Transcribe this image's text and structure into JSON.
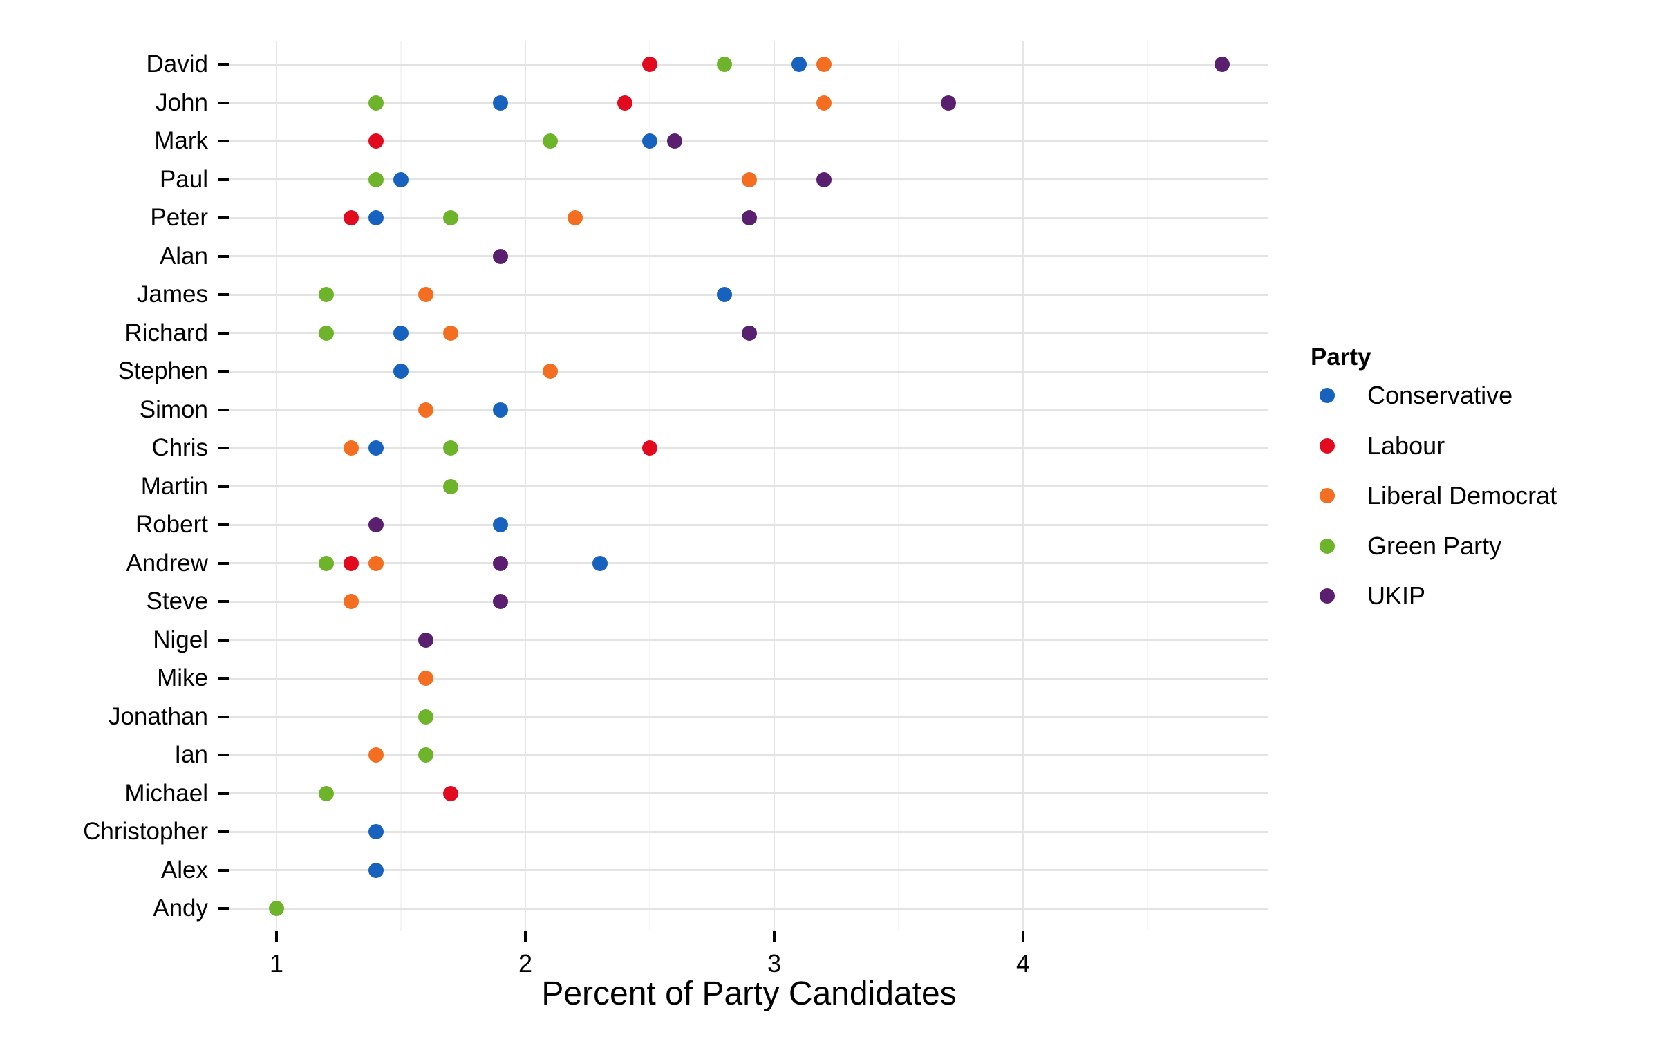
{
  "chart_data": {
    "type": "scatter",
    "subtype": "dot-plot",
    "title": "",
    "xlabel": "Percent of Party Candidates",
    "ylabel": "",
    "xlim": [
      0.8,
      4.98
    ],
    "x_ticks": [
      1,
      2,
      3,
      4
    ],
    "x_tick_labels": [
      "1",
      "2",
      "3",
      "4"
    ],
    "grid": true,
    "legend": {
      "title": "Party",
      "position": "right"
    },
    "categories": [
      "David",
      "John",
      "Mark",
      "Paul",
      "Peter",
      "Alan",
      "James",
      "Richard",
      "Stephen",
      "Simon",
      "Chris",
      "Martin",
      "Robert",
      "Andrew",
      "Steve",
      "Nigel",
      "Mike",
      "Jonathan",
      "Ian",
      "Michael",
      "Christopher",
      "Alex",
      "Andy"
    ],
    "series": [
      {
        "name": "Conservative",
        "color": "#1761BF",
        "values": [
          3.1,
          1.9,
          2.5,
          1.5,
          1.4,
          null,
          2.8,
          1.5,
          1.5,
          1.9,
          1.4,
          null,
          1.9,
          2.3,
          null,
          null,
          null,
          null,
          null,
          null,
          1.4,
          1.4,
          null
        ]
      },
      {
        "name": "Labour",
        "color": "#E10A1F",
        "values": [
          2.5,
          2.4,
          1.4,
          null,
          1.3,
          null,
          null,
          null,
          null,
          null,
          2.5,
          null,
          null,
          1.3,
          null,
          null,
          null,
          null,
          null,
          1.7,
          null,
          null,
          null
        ]
      },
      {
        "name": "Liberal Democrat",
        "color": "#F46E21",
        "values": [
          3.2,
          3.2,
          null,
          2.9,
          2.2,
          null,
          1.6,
          1.7,
          2.1,
          1.6,
          1.3,
          null,
          null,
          1.4,
          1.3,
          null,
          1.6,
          null,
          1.4,
          null,
          null,
          null,
          null
        ]
      },
      {
        "name": "Green Party",
        "color": "#6DB42A",
        "values": [
          2.8,
          1.4,
          2.1,
          1.4,
          1.7,
          null,
          1.2,
          1.2,
          null,
          null,
          1.7,
          1.7,
          null,
          1.2,
          null,
          null,
          null,
          1.6,
          1.6,
          1.2,
          null,
          null,
          1.0
        ]
      },
      {
        "name": "UKIP",
        "color": "#5B1F70",
        "values": [
          4.8,
          3.7,
          2.6,
          3.2,
          2.9,
          1.9,
          null,
          2.9,
          null,
          null,
          null,
          null,
          1.4,
          1.9,
          1.9,
          1.6,
          null,
          null,
          null,
          null,
          null,
          null,
          null
        ]
      }
    ]
  },
  "axis": {
    "x_title": "Percent of Party Candidates"
  },
  "legend": {
    "title": "Party",
    "items": [
      {
        "label": "Conservative",
        "color": "#1761BF"
      },
      {
        "label": "Labour",
        "color": "#E10A1F"
      },
      {
        "label": "Liberal Democrat",
        "color": "#F46E21"
      },
      {
        "label": "Green Party",
        "color": "#6DB42A"
      },
      {
        "label": "UKIP",
        "color": "#5B1F70"
      }
    ]
  },
  "theme": {
    "major_grid": "#e6e6e6",
    "minor_grid": "#f5f5f5",
    "row_grid": "#e3e3e3"
  }
}
